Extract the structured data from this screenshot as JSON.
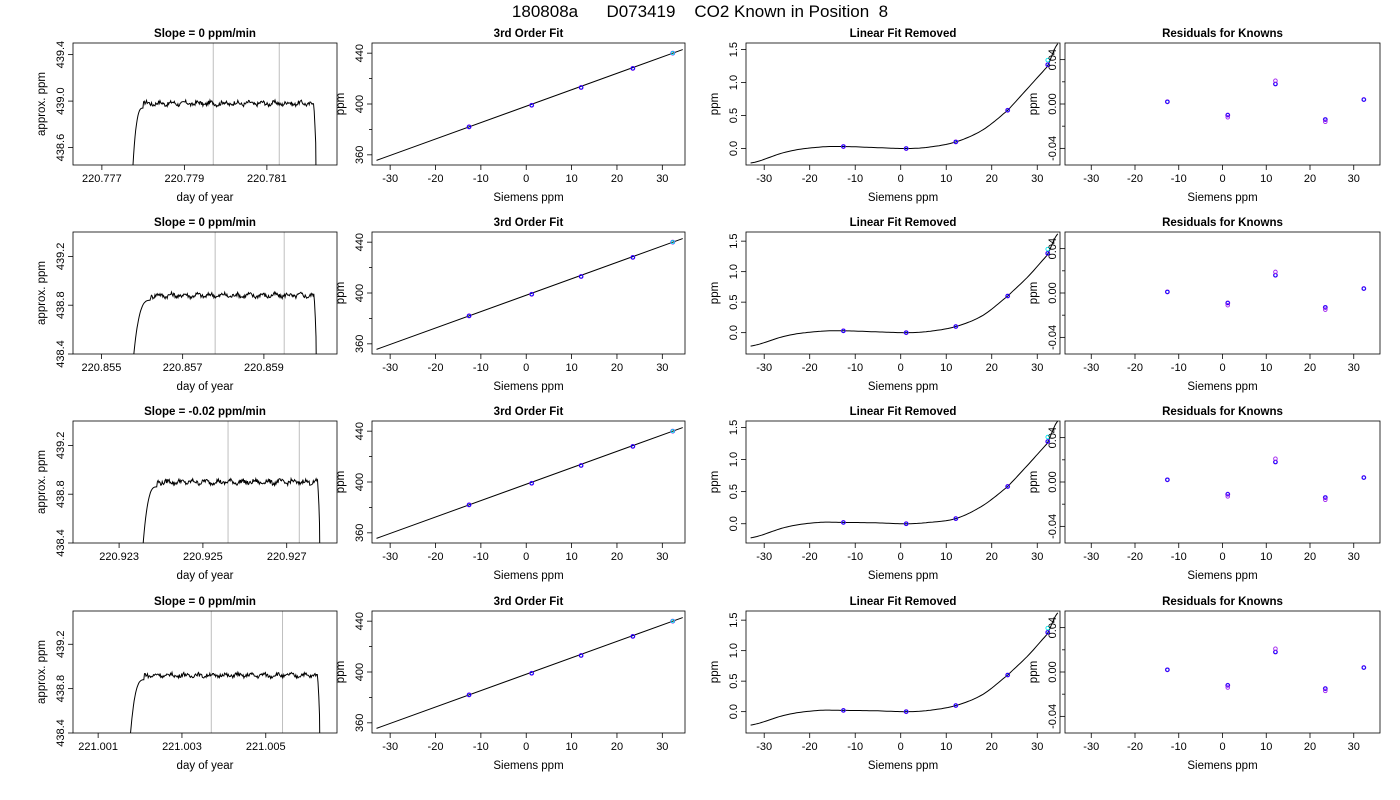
{
  "title": "180808a      D073419    CO2 Known in Position  8",
  "colors": {
    "line": "#000000",
    "vline": "#bebebe",
    "pt_blue": "#0000ff",
    "pt_purple": "#a020f0",
    "pt_cyan": "#00e5ee"
  },
  "panel_text": {
    "fit_title": "3rd Order Fit",
    "lin_title": "Linear Fit Removed",
    "res_title": "Residuals for Knowns",
    "doy_xlabel": "day of year",
    "doy_ylabel": "approx. ppm",
    "ppm_ylabel": "ppm",
    "siemens_xlabel": "Siemens ppm"
  },
  "chart_data": {
    "knowns": {
      "siemens_x": [
        -12.6,
        1.2,
        12.1,
        23.5,
        32.3
      ],
      "ppm_y": [
        382.0,
        399.0,
        413.0,
        428.0,
        440.0
      ],
      "x_ticks": [
        "-30",
        "-20",
        "-10",
        "0",
        "10",
        "20",
        "30"
      ],
      "fit_y_ticks": [
        "360",
        "400",
        "440"
      ],
      "fit_xlim": [
        -34,
        35
      ],
      "fit_ylim": [
        352,
        448
      ],
      "lin_xlim": [
        -34,
        35
      ],
      "res_xlim": [
        -36,
        36
      ],
      "res_ylim": [
        -0.055,
        0.055
      ],
      "res_y_ticks": [
        "-0.04",
        "0.00",
        "0.04"
      ]
    },
    "rows": [
      {
        "slope_title": "Slope =  0  ppm/min",
        "doy_xlim": [
          220.7763,
          220.7827
        ],
        "doy_ylim": [
          438.45,
          439.5
        ],
        "doy_x_ticks": [
          "220.777",
          "220.779",
          "220.781"
        ],
        "doy_y_ticks": [
          "438.6",
          "439.0",
          "439.4"
        ],
        "doy_vlines": [
          220.7797,
          220.7813
        ],
        "doy_start": 220.7777,
        "doy_end": 220.7822,
        "doy_rise_end": 220.778,
        "doy_plateau": 438.98,
        "lin_ylim": [
          -0.25,
          1.6
        ],
        "lin_y_ticks": [
          "0.0",
          "0.5",
          "1.0",
          "1.5"
        ],
        "lin_curve": [
          0.005,
          0.0,
          -0.002,
          0.0001
        ],
        "lin_points": [
          0.03,
          0.0,
          0.1,
          0.58,
          1.27
        ],
        "residuals": [
          0.002,
          -0.01,
          0.018,
          -0.014,
          0.004
        ]
      },
      {
        "slope_title": "Slope =  0  ppm/min",
        "doy_xlim": [
          220.8543,
          220.8608
        ],
        "doy_ylim": [
          438.4,
          439.4
        ],
        "doy_x_ticks": [
          "220.855",
          "220.857",
          "220.859"
        ],
        "doy_y_ticks": [
          "438.4",
          "438.8",
          "439.2"
        ],
        "doy_vlines": [
          220.8578,
          220.8595
        ],
        "doy_start": 220.8557,
        "doy_end": 220.8603,
        "doy_rise_end": 220.8562,
        "doy_plateau": 438.88,
        "lin_ylim": [
          -0.35,
          1.65
        ],
        "lin_y_ticks": [
          "0.0",
          "0.5",
          "1.0",
          "1.5"
        ],
        "lin_curve": [
          0.005,
          0.0,
          -0.002,
          0.0001
        ],
        "lin_points": [
          0.03,
          0.0,
          0.1,
          0.6,
          1.3
        ],
        "residuals": [
          0.001,
          -0.009,
          0.016,
          -0.013,
          0.004
        ]
      },
      {
        "slope_title": "Slope =  -0.02  ppm/min",
        "doy_xlim": [
          220.9219,
          220.9282
        ],
        "doy_ylim": [
          438.4,
          439.4
        ],
        "doy_x_ticks": [
          "220.923",
          "220.925",
          "220.927"
        ],
        "doy_y_ticks": [
          "438.4",
          "438.8",
          "439.2"
        ],
        "doy_vlines": [
          220.9256,
          220.9273
        ],
        "doy_start": 220.9235,
        "doy_end": 220.9278,
        "doy_rise_end": 220.9239,
        "doy_plateau": 438.9,
        "lin_ylim": [
          -0.3,
          1.6
        ],
        "lin_y_ticks": [
          "0.0",
          "0.5",
          "1.0",
          "1.5"
        ],
        "lin_curve": [
          0.005,
          0.0,
          -0.002,
          0.0001
        ],
        "lin_points": [
          0.02,
          0.0,
          0.08,
          0.58,
          1.28
        ],
        "residuals": [
          0.002,
          -0.011,
          0.018,
          -0.014,
          0.004
        ]
      },
      {
        "slope_title": "Slope =  0  ppm/min",
        "doy_xlim": [
          221.0004,
          221.0067
        ],
        "doy_ylim": [
          438.4,
          439.5
        ],
        "doy_x_ticks": [
          "221.001",
          "221.003",
          "221.005"
        ],
        "doy_y_ticks": [
          "438.4",
          "438.8",
          "439.2"
        ],
        "doy_vlines": [
          221.0037,
          221.0054
        ],
        "doy_start": 221.0017,
        "doy_end": 221.0063,
        "doy_rise_end": 221.0021,
        "doy_plateau": 438.92,
        "lin_ylim": [
          -0.35,
          1.65
        ],
        "lin_y_ticks": [
          "0.0",
          "0.5",
          "1.0",
          "1.5"
        ],
        "lin_curve": [
          0.005,
          0.0,
          -0.002,
          0.0001
        ],
        "lin_points": [
          0.02,
          0.0,
          0.1,
          0.6,
          1.3
        ],
        "residuals": [
          0.002,
          -0.012,
          0.018,
          -0.015,
          0.004
        ]
      }
    ]
  }
}
